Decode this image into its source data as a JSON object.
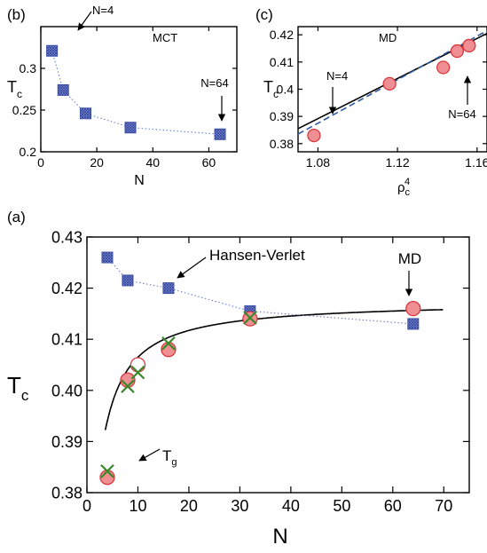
{
  "chart_data": [
    {
      "panel": "b",
      "panel_label": "(b)",
      "type": "line",
      "title": "MCT",
      "xlabel": "N",
      "ylabel": "T",
      "ylabel_sub": "c",
      "xlim": [
        0,
        70
      ],
      "ylim": [
        0.2,
        0.35
      ],
      "xticks": [
        0,
        20,
        40,
        60
      ],
      "xtick_labels": [
        "0",
        "20",
        "40",
        "60"
      ],
      "yticks": [
        0.2,
        0.25,
        0.3
      ],
      "ytick_labels": [
        "0.2",
        "0.25",
        "0.3"
      ],
      "series": [
        {
          "color": "#5a6fc0",
          "x": [
            4,
            8,
            16,
            32,
            64
          ],
          "y": [
            0.321,
            0.274,
            0.246,
            0.229,
            0.221
          ]
        }
      ],
      "annotations": [
        {
          "text": "N=4",
          "x": 4,
          "y": 0.321
        },
        {
          "text": "N=64",
          "x": 64,
          "y": 0.221
        }
      ]
    },
    {
      "panel": "c",
      "panel_label": "(c)",
      "type": "scatter",
      "title": "MD",
      "xlabel": "ρ",
      "xlabel_sub": "c",
      "xlabel_sup": "4",
      "ylabel": "T",
      "ylabel_sub": "c",
      "xlim": [
        1.07,
        1.165
      ],
      "ylim": [
        0.377,
        0.423
      ],
      "xticks": [
        1.08,
        1.12,
        1.16
      ],
      "xtick_labels": [
        "1.08",
        "1.12",
        "1.16"
      ],
      "yticks": [
        0.38,
        0.39,
        0.4,
        0.41,
        0.42
      ],
      "ytick_labels": [
        "0.38",
        "0.39",
        "0.4",
        "0.41",
        "0.42"
      ],
      "series": [
        {
          "color": "#e8787c",
          "x": [
            1.078,
            1.116,
            1.143,
            1.15,
            1.156
          ],
          "y": [
            0.383,
            0.402,
            0.408,
            0.414,
            0.416
          ]
        }
      ],
      "fit_lines": [
        {
          "color": "#000000",
          "style": "solid",
          "x": [
            1.07,
            1.165
          ],
          "y": [
            0.3855,
            0.4205
          ]
        },
        {
          "color": "#2c5aa0",
          "style": "dashed",
          "x": [
            1.07,
            1.165
          ],
          "y": [
            0.3835,
            0.4215
          ]
        }
      ],
      "annotations": [
        {
          "text": "N=4",
          "x": 1.078,
          "y": 0.383
        },
        {
          "text": "N=64",
          "x": 1.156,
          "y": 0.416
        }
      ]
    },
    {
      "panel": "a",
      "panel_label": "(a)",
      "type": "line",
      "xlabel": "N",
      "ylabel": "T",
      "ylabel_sub": "c",
      "xlim": [
        0,
        75
      ],
      "ylim": [
        0.38,
        0.43
      ],
      "xticks": [
        0,
        10,
        20,
        30,
        40,
        50,
        60,
        70
      ],
      "xtick_labels": [
        "0",
        "10",
        "20",
        "30",
        "40",
        "50",
        "60",
        "70"
      ],
      "yticks": [
        0.38,
        0.39,
        0.4,
        0.41,
        0.42,
        0.43
      ],
      "ytick_labels": [
        "0.38",
        "0.39",
        "0.40",
        "0.41",
        "0.42",
        "0.43"
      ],
      "series": [
        {
          "name": "Hansen-Verlet",
          "marker": "square",
          "color": "#5a6fc0",
          "x": [
            4,
            8,
            16,
            32,
            64
          ],
          "y": [
            0.426,
            0.4215,
            0.42,
            0.4155,
            0.413
          ]
        },
        {
          "name": "MD",
          "marker": "circle",
          "color": "#e8787c",
          "x": [
            4,
            8,
            10,
            16,
            32,
            64
          ],
          "y": [
            0.383,
            0.402,
            0.405,
            0.408,
            0.414,
            0.416
          ],
          "hollow_index": 2
        },
        {
          "marker": "cross",
          "color": "#3a8a2a",
          "x": [
            4,
            8,
            10,
            16,
            32
          ],
          "y": [
            0.3842,
            0.4008,
            0.4035,
            0.4092,
            0.4142
          ]
        }
      ],
      "annotations": [
        {
          "text": "Hansen-Verlet",
          "x": 16,
          "y": 0.42
        },
        {
          "text": "MD",
          "x": 64,
          "y": 0.416
        },
        {
          "text": "T",
          "sub": "g",
          "x": 4,
          "y": 0.3842
        }
      ]
    }
  ]
}
